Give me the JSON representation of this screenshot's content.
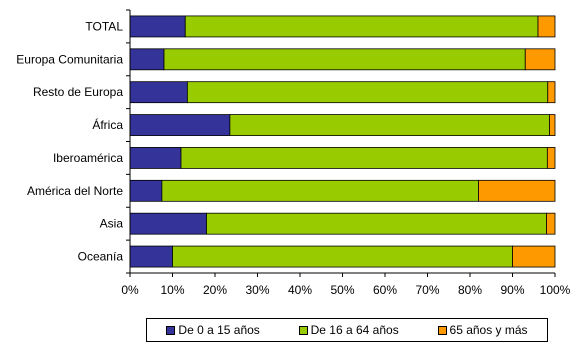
{
  "chart_data": {
    "type": "bar",
    "orientation": "horizontal",
    "stacked": "percent",
    "categories": [
      "TOTAL",
      "Europa Comunitaria",
      "Resto de Europa",
      "África",
      "Iberoamérica",
      "América del Norte",
      "Asia",
      "Oceanía"
    ],
    "series": [
      {
        "name": "De 0 a 15 años",
        "color": "#333399",
        "values": [
          13,
          8,
          13.5,
          23.5,
          12,
          7.5,
          18,
          10
        ]
      },
      {
        "name": "De 16 a 64 años",
        "color": "#99CC00",
        "values": [
          83,
          85,
          84.8,
          75.2,
          86.2,
          74.5,
          80,
          80
        ]
      },
      {
        "name": "65 años y más",
        "color": "#FF9900",
        "values": [
          4,
          7,
          1.7,
          1.3,
          1.8,
          18,
          2,
          10
        ]
      }
    ],
    "xlim": [
      0,
      100
    ],
    "xticks": [
      "0%",
      "10%",
      "20%",
      "30%",
      "40%",
      "50%",
      "60%",
      "70%",
      "80%",
      "90%",
      "100%"
    ],
    "grid": false,
    "legend_position": "bottom"
  }
}
